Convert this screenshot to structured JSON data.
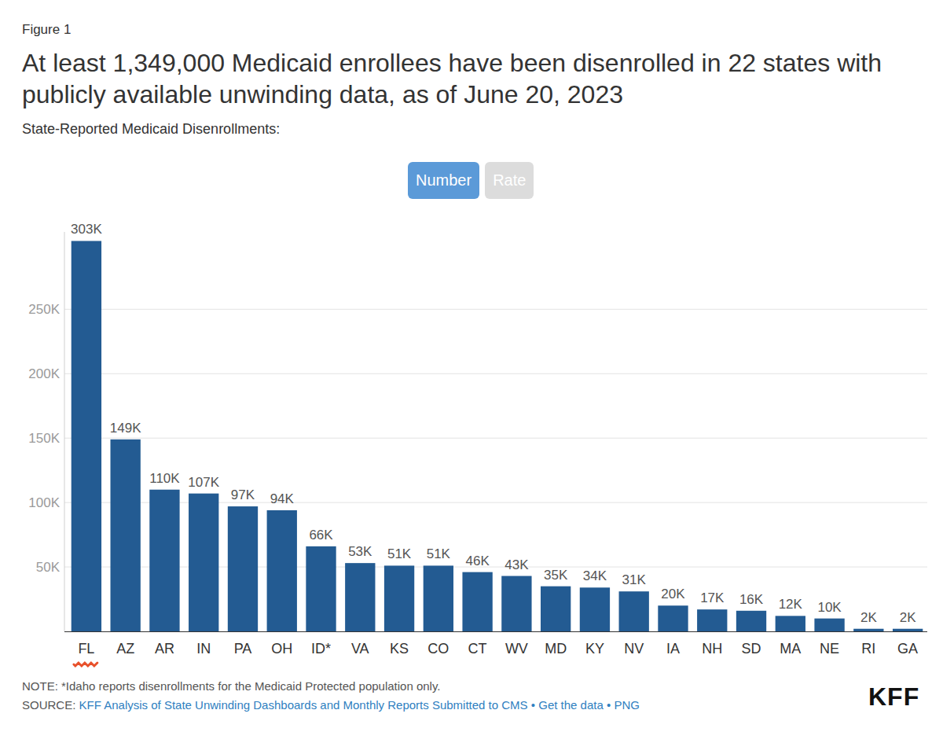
{
  "chart_data": {
    "type": "bar",
    "figure_label": "Figure 1",
    "title": "At least 1,349,000 Medicaid enrollees have been disenrolled in 22 states with publicly available unwinding data, as of June 20, 2023",
    "subtitle": "State-Reported Medicaid Disenrollments:",
    "buttons": [
      "Number",
      "Rate"
    ],
    "categories": [
      "FL",
      "AZ",
      "AR",
      "IN",
      "PA",
      "OH",
      "ID*",
      "VA",
      "KS",
      "CO",
      "CT",
      "WV",
      "MD",
      "KY",
      "NV",
      "IA",
      "NH",
      "SD",
      "MA",
      "NE",
      "RI",
      "GA"
    ],
    "values": [
      303000,
      149000,
      110000,
      107000,
      97000,
      94000,
      66000,
      53000,
      51000,
      51000,
      46000,
      43000,
      35000,
      34000,
      31000,
      20000,
      17000,
      16000,
      12000,
      10000,
      2000,
      2000
    ],
    "value_labels": [
      "303K",
      "149K",
      "110K",
      "107K",
      "97K",
      "94K",
      "66K",
      "53K",
      "51K",
      "51K",
      "46K",
      "43K",
      "35K",
      "34K",
      "31K",
      "20K",
      "17K",
      "16K",
      "12K",
      "10K",
      "2K",
      "2K"
    ],
    "color": "#235b92",
    "data_labels": true,
    "ylim": [
      0,
      310000
    ],
    "yticks": [
      {
        "value": 50000,
        "label": "50K"
      },
      {
        "value": 100000,
        "label": "100K"
      },
      {
        "value": 150000,
        "label": "150K"
      },
      {
        "value": 200000,
        "label": "200K"
      },
      {
        "value": 250000,
        "label": "250K"
      }
    ],
    "grid": true,
    "note": "NOTE: *Idaho reports disenrollments for the Medicaid Protected population only.",
    "source_label": "SOURCE:",
    "source_links": [
      "KFF Analysis of State Unwinding Dashboards and Monthly Reports Submitted to CMS",
      "Get the data",
      "PNG"
    ],
    "source_separator": "•",
    "logo": "KFF"
  }
}
